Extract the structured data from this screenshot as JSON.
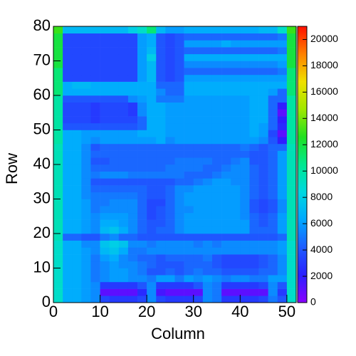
{
  "chart_data": {
    "type": "heatmap",
    "x_label": "Column",
    "y_label": "Row",
    "xlim": [
      0,
      52
    ],
    "ylim": [
      0,
      80
    ],
    "zlim": [
      0,
      21000
    ],
    "xticks": [
      0,
      10,
      20,
      30,
      40,
      50
    ],
    "yticks": [
      0,
      10,
      20,
      30,
      40,
      50,
      60,
      70,
      80
    ],
    "zticks": [
      0,
      2000,
      4000,
      6000,
      8000,
      10000,
      12000,
      14000,
      16000,
      18000,
      20000
    ],
    "colormap": [
      "#8a00ff",
      "#2a20ff",
      "#1e5cff",
      "#00a8ff",
      "#00d8e0",
      "#00e890",
      "#20e020",
      "#a0e800",
      "#f0e000",
      "#ff8000",
      "#ff1000"
    ],
    "z": [
      [
        9000,
        6500,
        6500,
        6000,
        5500,
        3500,
        3000,
        3000,
        3000,
        3500,
        5500,
        3500,
        3000,
        3000,
        3000,
        3500,
        5500,
        5000,
        3000,
        3000,
        3000,
        3000,
        3500,
        5000,
        4000,
        9000
      ],
      [
        9000,
        6500,
        6500,
        6000,
        5500,
        1000,
        1000,
        1000,
        1000,
        2500,
        5500,
        1500,
        1000,
        1000,
        1000,
        1000,
        5500,
        5000,
        1000,
        1000,
        1000,
        1000,
        1000,
        5500,
        3000,
        9000
      ],
      [
        9000,
        6500,
        6500,
        6000,
        5500,
        3000,
        3000,
        3000,
        3000,
        4000,
        5500,
        3000,
        3000,
        3000,
        3000,
        4000,
        5500,
        5000,
        3000,
        3000,
        3000,
        3000,
        3500,
        5500,
        4000,
        9000
      ],
      [
        9000,
        6500,
        6500,
        6000,
        5000,
        5500,
        6000,
        6000,
        5500,
        5500,
        5000,
        6000,
        6000,
        5000,
        6000,
        5500,
        6000,
        5500,
        5000,
        5500,
        5500,
        5000,
        5000,
        6000,
        6000,
        9000
      ],
      [
        9000,
        6500,
        6500,
        6000,
        5000,
        5500,
        6000,
        6000,
        5500,
        5000,
        4000,
        4000,
        4500,
        4000,
        4500,
        5000,
        4500,
        4500,
        4000,
        4000,
        4000,
        4000,
        4500,
        4500,
        5500,
        9000
      ],
      [
        9000,
        6500,
        6500,
        6000,
        5000,
        5500,
        6000,
        5500,
        5500,
        5000,
        4500,
        4000,
        4000,
        4000,
        4500,
        4500,
        4500,
        4000,
        3500,
        3500,
        3500,
        3500,
        4000,
        4500,
        5500,
        9000
      ],
      [
        9000,
        6500,
        6500,
        6000,
        5000,
        6000,
        6500,
        5500,
        5000,
        4500,
        4500,
        4000,
        4500,
        4500,
        4500,
        4500,
        5000,
        4000,
        3500,
        3500,
        3500,
        3500,
        4000,
        4500,
        5500,
        9000
      ],
      [
        9000,
        6500,
        6500,
        6000,
        5500,
        7000,
        7500,
        6500,
        5000,
        5000,
        5500,
        5500,
        5500,
        5500,
        5500,
        5500,
        5500,
        5500,
        5500,
        5500,
        5500,
        5500,
        5500,
        5500,
        6000,
        9000
      ],
      [
        9000,
        6500,
        6500,
        5500,
        5500,
        7500,
        8000,
        7500,
        5500,
        5500,
        5000,
        5500,
        5500,
        5500,
        5500,
        5000,
        5500,
        5000,
        5500,
        5500,
        5500,
        5500,
        5500,
        5500,
        6000,
        9000
      ],
      [
        9500,
        4500,
        4500,
        4000,
        4000,
        5000,
        5500,
        4500,
        4500,
        4000,
        4000,
        4000,
        4000,
        4000,
        4000,
        4000,
        4000,
        4000,
        4000,
        4000,
        4000,
        4000,
        4000,
        4000,
        4500,
        9500
      ],
      [
        9500,
        6500,
        6500,
        6000,
        5500,
        7000,
        7500,
        6500,
        5500,
        4500,
        4000,
        4500,
        4500,
        5500,
        6000,
        6000,
        6000,
        6000,
        6000,
        6000,
        6000,
        4500,
        4500,
        4500,
        6000,
        9500
      ],
      [
        9500,
        6500,
        6500,
        6000,
        5500,
        6500,
        6500,
        6000,
        5500,
        4500,
        4000,
        4000,
        4500,
        5500,
        6000,
        6000,
        6000,
        6000,
        6000,
        6000,
        6000,
        4500,
        4000,
        4500,
        6000,
        9500
      ],
      [
        9500,
        6500,
        6500,
        6000,
        5500,
        6000,
        6000,
        6000,
        5500,
        4500,
        3500,
        4000,
        4500,
        5500,
        6000,
        6000,
        6000,
        6000,
        6000,
        6000,
        5500,
        4500,
        4000,
        4500,
        6000,
        9500
      ],
      [
        9500,
        6500,
        6500,
        6000,
        5000,
        5500,
        5500,
        5500,
        5500,
        4500,
        3500,
        4000,
        4500,
        5500,
        5500,
        6000,
        6000,
        6000,
        6000,
        6000,
        5500,
        4000,
        3500,
        4000,
        5500,
        9500
      ],
      [
        9500,
        6500,
        6500,
        6000,
        5000,
        5000,
        5500,
        5500,
        5500,
        4500,
        3500,
        3500,
        4500,
        5500,
        6000,
        6000,
        6000,
        6000,
        6000,
        6000,
        5500,
        4000,
        3500,
        4000,
        5500,
        9500
      ],
      [
        9500,
        6500,
        6500,
        5500,
        5000,
        5000,
        5000,
        5000,
        5000,
        4500,
        4000,
        4000,
        4500,
        5500,
        6000,
        6000,
        6000,
        6000,
        6000,
        6000,
        5500,
        4500,
        4000,
        4500,
        6000,
        9500
      ],
      [
        9500,
        6500,
        6500,
        5500,
        4500,
        4500,
        4500,
        4500,
        4500,
        4500,
        4000,
        4000,
        4500,
        5500,
        5500,
        6000,
        6000,
        6000,
        6000,
        6000,
        5500,
        4500,
        4000,
        4500,
        6000,
        9500
      ],
      [
        9500,
        6500,
        6500,
        5500,
        4000,
        4000,
        4000,
        4000,
        4000,
        4000,
        4000,
        4000,
        4000,
        4500,
        4500,
        5000,
        5500,
        6000,
        6000,
        5500,
        5500,
        4500,
        4000,
        4500,
        6000,
        9500
      ],
      [
        9500,
        6500,
        6500,
        5500,
        5000,
        5500,
        5500,
        5500,
        5000,
        5000,
        5000,
        5000,
        5000,
        5000,
        4500,
        4500,
        4500,
        5000,
        5500,
        5500,
        5500,
        4500,
        4000,
        4500,
        6000,
        9500
      ],
      [
        9500,
        6500,
        6500,
        5500,
        4500,
        4500,
        4500,
        4500,
        4500,
        4500,
        4500,
        4500,
        5000,
        5000,
        5000,
        5000,
        4500,
        4500,
        5000,
        5500,
        5500,
        4500,
        4000,
        4500,
        6000,
        9500
      ],
      [
        9500,
        6500,
        6500,
        5500,
        4000,
        4000,
        4500,
        4500,
        4500,
        4500,
        4500,
        4500,
        4500,
        5000,
        5000,
        5000,
        5000,
        4500,
        4500,
        5000,
        5500,
        4000,
        4000,
        4500,
        6000,
        9500
      ],
      [
        9500,
        6500,
        6500,
        5500,
        4500,
        4500,
        4500,
        4500,
        4500,
        4500,
        4500,
        4500,
        4500,
        4500,
        4500,
        4500,
        4500,
        4500,
        4500,
        4500,
        4500,
        4000,
        4000,
        4500,
        6000,
        9500
      ],
      [
        9500,
        6500,
        6500,
        5500,
        4000,
        4500,
        4500,
        4500,
        4500,
        4500,
        4500,
        4500,
        4500,
        4500,
        4500,
        4500,
        4500,
        4500,
        4500,
        4500,
        5000,
        4500,
        4000,
        4500,
        4500,
        9500
      ],
      [
        10000,
        6500,
        6500,
        6000,
        5500,
        6000,
        6000,
        6000,
        6000,
        6000,
        6000,
        6500,
        5500,
        6000,
        6000,
        6000,
        6000,
        6000,
        6000,
        6000,
        6000,
        6000,
        5500,
        4000,
        2000,
        10000
      ],
      [
        10000,
        6500,
        6500,
        6000,
        6000,
        6000,
        6000,
        6000,
        6000,
        6500,
        6500,
        6500,
        6000,
        6000,
        6000,
        6000,
        6000,
        6000,
        6000,
        6000,
        6000,
        6500,
        6000,
        3500,
        1000,
        10000
      ],
      [
        10000,
        4000,
        4000,
        4000,
        4000,
        4000,
        4000,
        4000,
        4000,
        4500,
        6500,
        6500,
        6000,
        6000,
        6000,
        6000,
        6000,
        6000,
        6000,
        6000,
        6000,
        6500,
        6000,
        4500,
        2500,
        10000
      ],
      [
        10000,
        3500,
        3500,
        3500,
        3000,
        3500,
        3500,
        3500,
        3500,
        4500,
        6500,
        6500,
        6000,
        6000,
        6000,
        6000,
        6000,
        6000,
        6000,
        6000,
        6000,
        6500,
        6500,
        4500,
        2000,
        10000
      ],
      [
        10000,
        3500,
        3500,
        3500,
        3000,
        3500,
        3500,
        3500,
        3000,
        5500,
        6500,
        6500,
        6000,
        6000,
        6000,
        6000,
        6000,
        6000,
        6000,
        6000,
        6000,
        6500,
        6500,
        4500,
        1000,
        10000
      ],
      [
        10000,
        3500,
        3500,
        3500,
        3000,
        3500,
        3500,
        3500,
        3000,
        5500,
        6500,
        6500,
        6000,
        6000,
        6000,
        6000,
        6000,
        6000,
        6000,
        6000,
        6000,
        6500,
        6500,
        4500,
        2000,
        10000
      ],
      [
        10000,
        4000,
        4000,
        4000,
        4000,
        4000,
        4000,
        4000,
        5500,
        6000,
        6500,
        5000,
        5000,
        5000,
        6000,
        6000,
        6000,
        6000,
        6000,
        6000,
        6000,
        6500,
        6500,
        4500,
        4500,
        10000
      ],
      [
        11000,
        6500,
        6500,
        6500,
        6500,
        6500,
        6500,
        6500,
        6500,
        6500,
        6500,
        5500,
        4500,
        4500,
        6500,
        6500,
        6500,
        6500,
        6500,
        6500,
        6500,
        6500,
        6500,
        6000,
        4500,
        11000
      ],
      [
        11000,
        6500,
        7000,
        7000,
        6500,
        6500,
        6500,
        6500,
        6500,
        6500,
        6500,
        4500,
        4500,
        4500,
        6500,
        6500,
        6500,
        6500,
        6500,
        6500,
        6500,
        6500,
        6500,
        6500,
        6500,
        11000
      ],
      [
        11000,
        3500,
        3500,
        3500,
        3500,
        3500,
        3500,
        3500,
        3500,
        6000,
        7000,
        4000,
        3500,
        4000,
        6000,
        6000,
        6000,
        6000,
        6000,
        6000,
        6000,
        6000,
        6000,
        6000,
        6000,
        11000
      ],
      [
        11000,
        3500,
        3500,
        3500,
        3500,
        3500,
        3500,
        3500,
        3500,
        6000,
        7000,
        4000,
        3500,
        4000,
        4500,
        4500,
        4500,
        4500,
        4500,
        4500,
        4500,
        4500,
        4500,
        4500,
        5000,
        11000
      ],
      [
        12000,
        3500,
        3500,
        3500,
        3500,
        3500,
        3500,
        3500,
        3500,
        6000,
        7000,
        4000,
        3500,
        4000,
        5500,
        5500,
        5500,
        5500,
        5500,
        5500,
        5500,
        5500,
        5500,
        5500,
        6000,
        12000
      ],
      [
        12000,
        3500,
        3500,
        3500,
        3500,
        3500,
        3500,
        3500,
        3500,
        6000,
        8000,
        4000,
        3500,
        4000,
        6500,
        6500,
        6500,
        6500,
        6500,
        6500,
        6500,
        6500,
        6500,
        6500,
        6500,
        12000
      ],
      [
        12000,
        3500,
        3500,
        3500,
        3500,
        3500,
        3500,
        3500,
        3500,
        6000,
        7000,
        4000,
        3500,
        4000,
        4500,
        4500,
        4500,
        4500,
        4500,
        4500,
        4500,
        4500,
        4500,
        4500,
        5000,
        12000
      ],
      [
        12000,
        3500,
        3500,
        3500,
        3500,
        3500,
        3500,
        3500,
        3500,
        6000,
        6500,
        4000,
        3500,
        4000,
        6000,
        6000,
        6000,
        6000,
        6500,
        6000,
        6000,
        6000,
        6000,
        6000,
        6000,
        12000
      ],
      [
        12000,
        3500,
        3500,
        3500,
        3500,
        3500,
        3500,
        3500,
        3500,
        6000,
        6500,
        4000,
        3500,
        4000,
        4500,
        4500,
        4500,
        4500,
        4500,
        4500,
        4500,
        4500,
        4500,
        4500,
        5000,
        12000
      ],
      [
        13000,
        7000,
        7000,
        7000,
        7000,
        7000,
        7000,
        7000,
        8000,
        9000,
        11000,
        7000,
        6000,
        6000,
        6500,
        6500,
        6500,
        6500,
        6500,
        6500,
        6500,
        6500,
        7000,
        7000,
        9000,
        13000
      ]
    ]
  }
}
